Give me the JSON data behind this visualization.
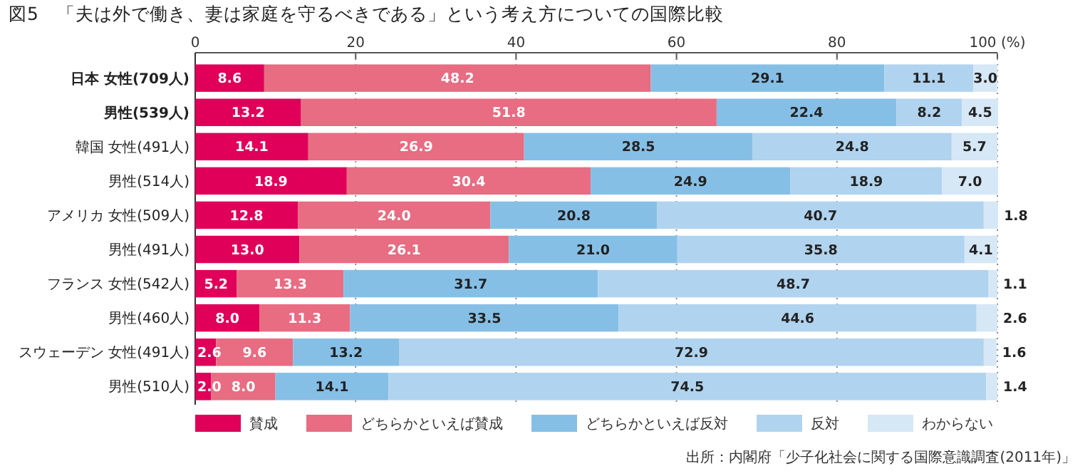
{
  "chart_data": {
    "type": "bar",
    "orientation": "horizontal",
    "stacked": true,
    "title": "図5　「夫は外で働き、妻は家庭を守るべきである」という考え方についての国際比較",
    "categories": [
      "日本 女性(709人)",
      "男性(539人)",
      "韓国 女性(491人)",
      "男性(514人)",
      "アメリカ 女性(509人)",
      "男性(491人)",
      "フランス 女性(542人)",
      "男性(460人)",
      "スウェーデン 女性(491人)",
      "男性(510人)"
    ],
    "series": [
      {
        "name": "賛成",
        "color": "#e0005a",
        "values": [
          8.6,
          13.2,
          14.1,
          18.9,
          12.8,
          13.0,
          5.2,
          8.0,
          2.6,
          2.0
        ],
        "value_labels": [
          "8.6",
          "13.2",
          "14.1",
          "18.9",
          "12.8",
          "13.0",
          "5.2",
          "8.0",
          "2.6",
          "2.0"
        ]
      },
      {
        "name": "どちらかといえば賛成",
        "color": "#e86c82",
        "values": [
          48.2,
          51.8,
          26.9,
          30.4,
          24.0,
          26.1,
          13.3,
          11.3,
          9.6,
          8.0
        ],
        "value_labels": [
          "48.2",
          "51.8",
          "26.9",
          "30.4",
          "24.0",
          "26.1",
          "13.3",
          "11.3",
          "9.6",
          "8.0"
        ]
      },
      {
        "name": "どちらかといえば反対",
        "color": "#86bfe6",
        "values": [
          29.1,
          22.4,
          28.5,
          24.9,
          20.8,
          21.0,
          31.7,
          33.5,
          13.2,
          14.1
        ],
        "value_labels": [
          "29.1",
          "22.4",
          "28.5",
          "24.9",
          "20.8",
          "21.0",
          "31.7",
          "33.5",
          "13.2",
          "14.1"
        ]
      },
      {
        "name": "反対",
        "color": "#b0d3ef",
        "values": [
          11.1,
          8.2,
          24.8,
          18.9,
          40.7,
          35.8,
          48.7,
          44.6,
          72.9,
          74.5
        ],
        "value_labels": [
          "11.1",
          "8.2",
          "24.8",
          "18.9",
          "40.7",
          "35.8",
          "48.7",
          "44.6",
          "72.9",
          "74.5"
        ]
      },
      {
        "name": "わからない",
        "color": "#d6e7f6",
        "values": [
          3.0,
          4.5,
          5.7,
          7.0,
          1.8,
          4.1,
          1.1,
          2.6,
          1.6,
          1.4
        ],
        "value_labels": [
          "3.0",
          "4.5",
          "5.7",
          "7.0",
          "1.8",
          "4.1",
          "1.1",
          "2.6",
          "1.6",
          "1.4"
        ]
      }
    ],
    "xlim": [
      0,
      100
    ],
    "xticks": [
      0,
      20,
      40,
      60,
      80,
      {
        "value": 100,
        "label": "100 (%)"
      }
    ],
    "grid": "x",
    "legend": "bottom",
    "annotations": [
      "出所：内閣府「少子化社会に関する国際意識調査(2011年)」"
    ]
  }
}
